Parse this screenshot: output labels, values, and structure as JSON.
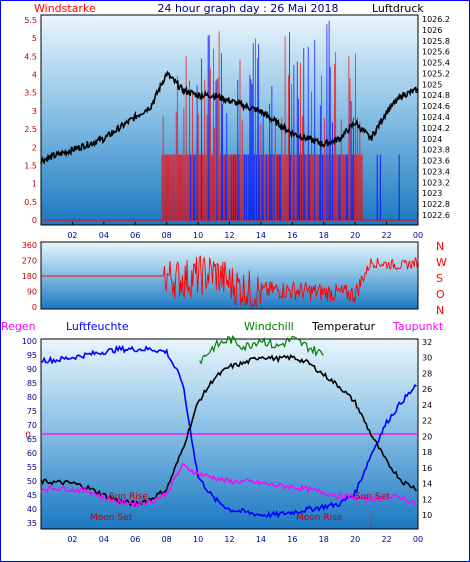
{
  "title": "24 hour graph day : 26 Mai 2018",
  "colors": {
    "frame_border": "#0000ff",
    "panel_top": "#e8f4fb",
    "panel_bottom": "#1b7ac4",
    "wind": "#ff0000",
    "wind_alt": "#0000ff",
    "pressure": "#000000",
    "humidity": "#0000ff",
    "windchill": "#008000",
    "temperature": "#000000",
    "dewpoint": "#ff00ff",
    "rain": "#ff00ff",
    "moon_sun": "#c00000"
  },
  "x_axis": {
    "tick_labels": [
      "02",
      "04",
      "06",
      "08",
      "10",
      "12",
      "14",
      "16",
      "18",
      "20",
      "22",
      "00"
    ]
  },
  "panel1": {
    "left_label": "Windstarke",
    "right_label": "Luftdruck",
    "left_ticks": [
      "5.5",
      "5",
      "4.5",
      "4",
      "3.5",
      "3",
      "2.5",
      "2",
      "1.5",
      "1",
      "0.5",
      "0"
    ],
    "right_ticks": [
      "1026.2",
      "1026",
      "1025.8",
      "1025.6",
      "1025.4",
      "1025.2",
      "1025",
      "1024.8",
      "1024.6",
      "1024.4",
      "1024.2",
      "1024",
      "1023.8",
      "1023.6",
      "1023.4",
      "1023.2",
      "1023",
      "1022.8",
      "1022.6"
    ]
  },
  "panel2": {
    "left_ticks": [
      "360",
      "270",
      "180",
      "90",
      "0"
    ],
    "compass": [
      "N",
      "W",
      "S",
      "O",
      "N"
    ]
  },
  "panel3": {
    "rain_label": "Regen",
    "humidity_label": "Luftfeuchte",
    "windchill_label": "Windchill",
    "temperature_label": "Temperatur",
    "dewpoint_label": "Taupunkt",
    "left_ticks": [
      "100",
      "95",
      "90",
      "85",
      "80",
      "75",
      "70",
      "65",
      "60",
      "55",
      "50",
      "45",
      "40",
      "35"
    ],
    "right_ticks": [
      "32",
      "30",
      "28",
      "26",
      "24",
      "22",
      "20",
      "18",
      "16",
      "14",
      "12",
      "10"
    ],
    "rain_zero": "0",
    "annotations": {
      "sun_rise": "Sun Rise",
      "moon_set": "Moon Set",
      "moon_rise": "Moon Rise",
      "sun_set": "Sun Set"
    }
  },
  "chart_data": [
    {
      "type": "line",
      "title": "24 hour graph day : 26 Mai 2018",
      "xlabel": "",
      "x_ticks": [
        "02",
        "04",
        "06",
        "08",
        "10",
        "12",
        "14",
        "16",
        "18",
        "20",
        "22",
        "00"
      ],
      "ylabel": "Windstarke",
      "ylim": [
        0,
        5.5
      ],
      "y2label": "Luftdruck",
      "y2lim": [
        1022.6,
        1026.2
      ],
      "hours": [
        0,
        1,
        2,
        3,
        4,
        5,
        6,
        7,
        8,
        9,
        10,
        11,
        12,
        13,
        14,
        15,
        16,
        17,
        18,
        19,
        20,
        21,
        22,
        23,
        24
      ],
      "series": [
        {
          "name": "Luftdruck",
          "axis": "right",
          "values": [
            1023.6,
            1023.7,
            1023.8,
            1023.9,
            1024.0,
            1024.2,
            1024.4,
            1024.6,
            1025.2,
            1024.9,
            1024.8,
            1024.8,
            1024.7,
            1024.6,
            1024.5,
            1024.3,
            1024.1,
            1024.0,
            1023.9,
            1024.0,
            1024.3,
            1024.0,
            1024.5,
            1024.8,
            1024.9
          ]
        }
      ],
      "wind_active_hours": [
        7.7,
        20.5
      ]
    },
    {
      "type": "line",
      "ylim": [
        0,
        360
      ],
      "ylabel": "",
      "hours": [
        0,
        1,
        2,
        3,
        4,
        5,
        6,
        7,
        7.8,
        9,
        10,
        11,
        12,
        13,
        14,
        15,
        16,
        17,
        18,
        19,
        20,
        21,
        22,
        23,
        24
      ],
      "series": [
        {
          "name": "",
          "values": [
            180,
            180,
            180,
            180,
            180,
            180,
            180,
            180,
            180,
            160,
            180,
            200,
            140,
            100,
            90,
            100,
            95,
            90,
            85,
            80,
            75,
            260,
            250,
            240,
            260
          ]
        }
      ]
    },
    {
      "type": "line",
      "ylabel": "Luftfeuchte",
      "ylim": [
        33,
        100
      ],
      "y2label": "Temperatur",
      "y2lim": [
        9,
        33
      ],
      "hours": [
        0,
        1,
        2,
        3,
        4,
        5,
        6,
        7,
        8,
        9,
        10,
        11,
        12,
        13,
        14,
        15,
        16,
        17,
        18,
        19,
        20,
        21,
        22,
        23,
        24
      ],
      "series": [
        {
          "name": "Luftfeuchte",
          "axis": "left",
          "values": [
            93,
            93,
            94,
            95,
            96,
            97,
            97,
            97,
            96,
            85,
            50,
            42,
            38,
            37,
            36,
            36,
            37,
            38,
            39,
            40,
            44,
            58,
            70,
            78,
            84
          ]
        },
        {
          "name": "Temperatur",
          "axis": "right",
          "values": [
            15,
            14.9,
            14.8,
            14.2,
            13.3,
            12.5,
            12.2,
            12.8,
            14,
            19,
            25,
            28,
            29.5,
            30,
            30.8,
            30.5,
            30.7,
            30,
            28.5,
            27,
            25,
            21,
            17.5,
            15,
            14
          ]
        },
        {
          "name": "Windchill",
          "axis": "right",
          "values": [
            null,
            null,
            null,
            null,
            null,
            null,
            null,
            null,
            null,
            null,
            30,
            32,
            33,
            32,
            33,
            32,
            33,
            32,
            31,
            null,
            null,
            null,
            null,
            null,
            null
          ]
        },
        {
          "name": "Taupunkt",
          "axis": "right",
          "values": [
            14,
            14.2,
            14,
            13.8,
            13,
            12.4,
            12.2,
            12.5,
            13.5,
            17,
            16,
            15.5,
            15,
            15,
            14.8,
            14.5,
            14.3,
            14,
            13.6,
            13.2,
            13,
            12.8,
            13,
            13,
            12
          ]
        }
      ]
    }
  ]
}
